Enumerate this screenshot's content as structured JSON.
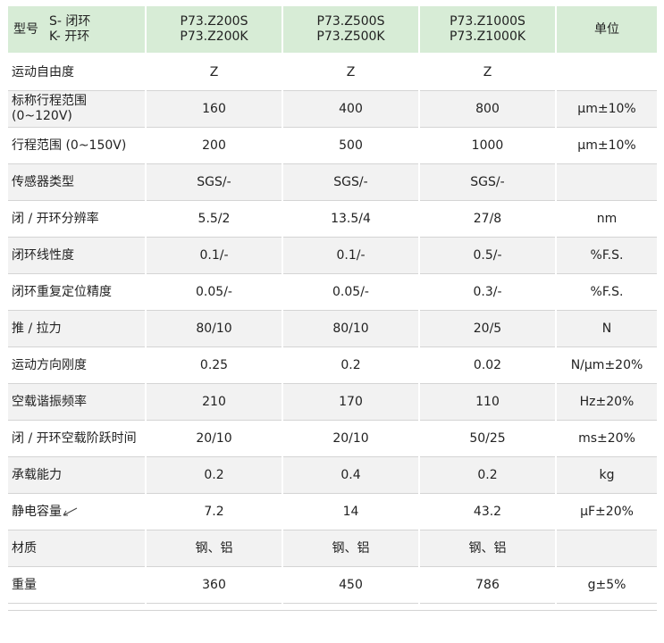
{
  "header": {
    "type_label": "型号",
    "mode_s": "S- 闭环",
    "mode_k": "K- 开环",
    "models": [
      {
        "line1": "P73.Z200S",
        "line2": "P73.Z200K"
      },
      {
        "line1": "P73.Z500S",
        "line2": "P73.Z500K"
      },
      {
        "line1": "P73.Z1000S",
        "line2": "P73.Z1000K"
      }
    ],
    "unit_label": "单位"
  },
  "rows": [
    {
      "label": "运动自由度",
      "v1": "Z",
      "v2": "Z",
      "v3": "Z",
      "unit": ""
    },
    {
      "label": "标称行程范围 (0~120V)",
      "v1": "160",
      "v2": "400",
      "v3": "800",
      "unit": "μm±10%"
    },
    {
      "label": "行程范围 (0~150V)",
      "v1": "200",
      "v2": "500",
      "v3": "1000",
      "unit": "μm±10%"
    },
    {
      "label": "传感器类型",
      "v1": "SGS/-",
      "v2": "SGS/-",
      "v3": "SGS/-",
      "unit": ""
    },
    {
      "label": "闭 / 开环分辨率",
      "v1": "5.5/2",
      "v2": "13.5/4",
      "v3": "27/8",
      "unit": "nm"
    },
    {
      "label": "闭环线性度",
      "v1": "0.1/-",
      "v2": "0.1/-",
      "v3": "0.5/-",
      "unit": "%F.S."
    },
    {
      "label": "闭环重复定位精度",
      "v1": "0.05/-",
      "v2": "0.05/-",
      "v3": "0.3/-",
      "unit": "%F.S."
    },
    {
      "label": "推 / 拉力",
      "v1": "80/10",
      "v2": "80/10",
      "v3": "20/5",
      "unit": "N"
    },
    {
      "label": "运动方向刚度",
      "v1": "0.25",
      "v2": "0.2",
      "v3": "0.02",
      "unit": "N/μm±20%"
    },
    {
      "label": "空载谐振频率",
      "v1": "210",
      "v2": "170",
      "v3": "110",
      "unit": "Hz±20%"
    },
    {
      "label": "闭 / 开环空载阶跃时间",
      "v1": "20/10",
      "v2": "20/10",
      "v3": "50/25",
      "unit": "ms±20%"
    },
    {
      "label": "承载能力",
      "v1": "0.2",
      "v2": "0.4",
      "v3": "0.2",
      "unit": "kg"
    },
    {
      "label": "静电容量",
      "v1": "7.2",
      "v2": "14",
      "v3": "43.2",
      "unit": "μF±20%"
    },
    {
      "label": "材质",
      "v1": "钢、铝",
      "v2": "钢、铝",
      "v3": "钢、铝",
      "unit": ""
    },
    {
      "label": "重量",
      "v1": "360",
      "v2": "450",
      "v3": "786",
      "unit": "g±5%"
    }
  ],
  "colors": {
    "header_bg": "#d7ecd6",
    "stripe_bg": "#f2f2f2",
    "rule": "#d4d4d4"
  }
}
